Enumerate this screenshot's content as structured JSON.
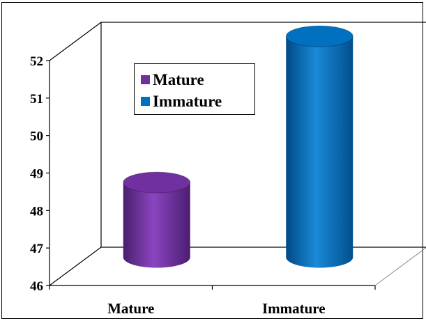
{
  "chart_data": {
    "type": "bar",
    "style": "3d-cylinder",
    "categories": [
      "Mature",
      "Immature"
    ],
    "series": [
      {
        "name": "Mature",
        "color": "#7030A0",
        "values": [
          48.2,
          null
        ]
      },
      {
        "name": "Immature",
        "color": "#0070C0",
        "values": [
          null,
          52.1
        ]
      }
    ],
    "ylim": [
      46,
      52
    ],
    "yticks": [
      "46",
      "47",
      "48",
      "49",
      "50",
      "51",
      "52"
    ],
    "legend_position": "top-left-inside",
    "grid": false
  }
}
